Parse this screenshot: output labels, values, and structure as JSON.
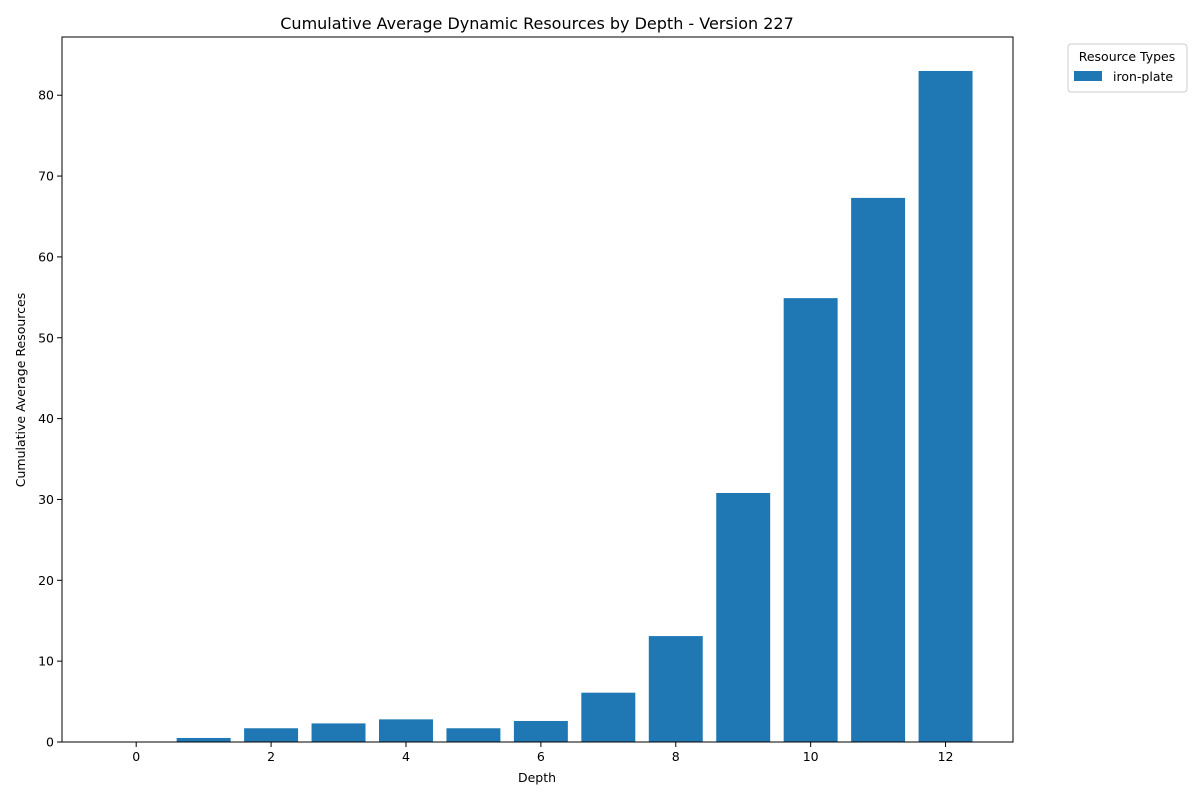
{
  "chart_data": {
    "type": "bar",
    "title": "Cumulative Average Dynamic Resources by Depth - Version 227",
    "xlabel": "Depth",
    "ylabel": "Cumulative Average Resources",
    "x": [
      0,
      1,
      2,
      3,
      4,
      5,
      6,
      7,
      8,
      9,
      10,
      11,
      12
    ],
    "series": [
      {
        "name": "iron-plate",
        "color": "#1f77b4",
        "values": [
          0.0,
          0.5,
          1.7,
          2.3,
          2.8,
          1.7,
          2.6,
          6.1,
          13.1,
          30.8,
          54.9,
          67.3,
          83.0
        ]
      }
    ],
    "xlim": [
      -1.1,
      13.0
    ],
    "ylim": [
      0,
      87.2
    ],
    "xticks": [
      0,
      2,
      4,
      6,
      8,
      10,
      12
    ],
    "yticks": [
      0,
      10,
      20,
      30,
      40,
      50,
      60,
      70,
      80
    ],
    "grid": false,
    "legend": {
      "title": "Resource Types",
      "placement": "outside-top-right"
    }
  }
}
